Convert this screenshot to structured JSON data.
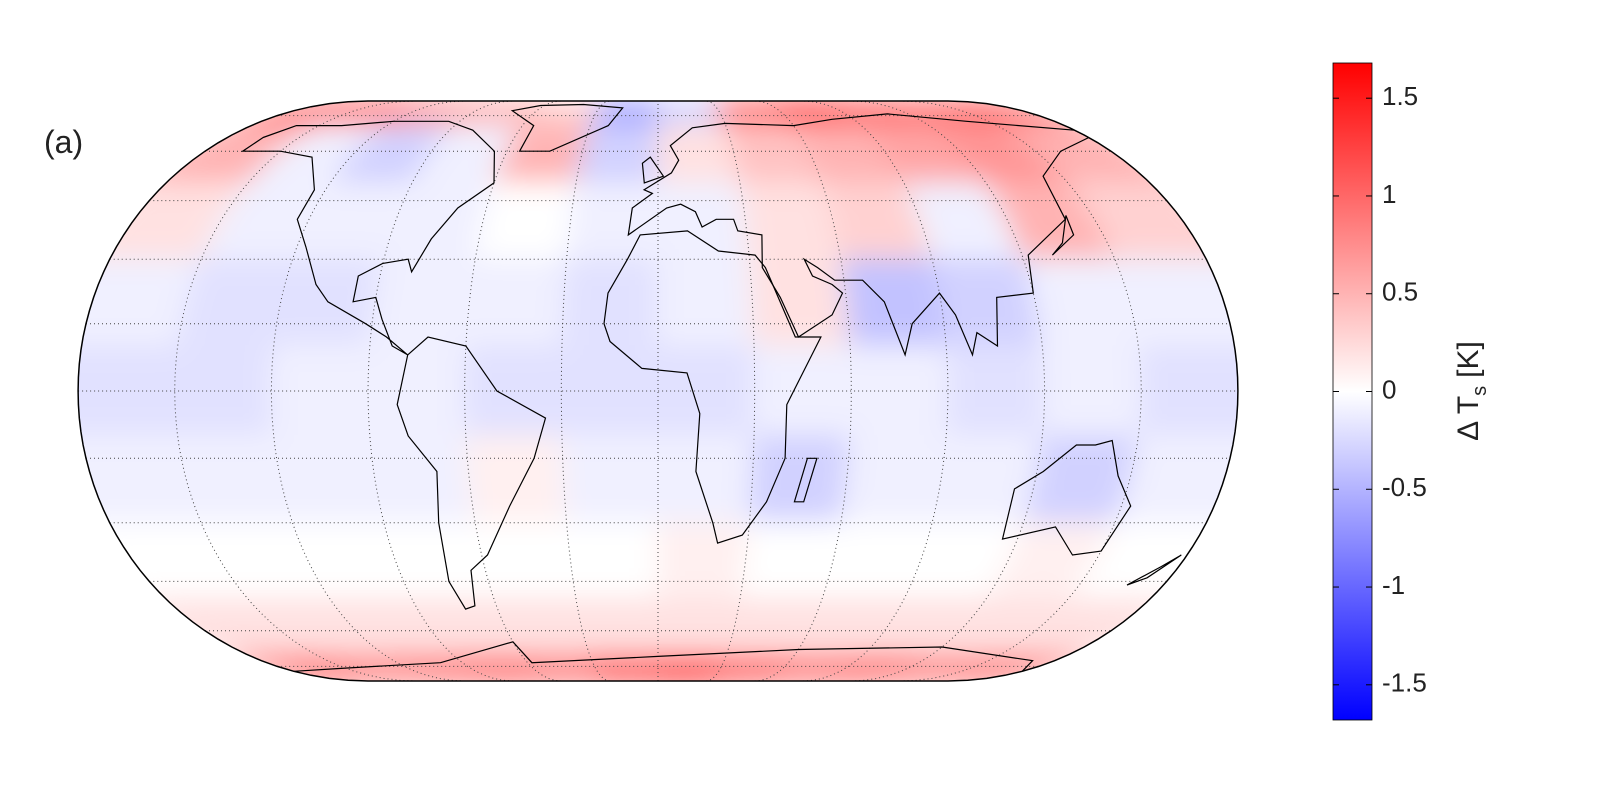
{
  "chart_data": {
    "type": "map",
    "panel_label": "(a)",
    "x": [
      -165,
      -135,
      -105,
      -75,
      -45,
      -15,
      15,
      45,
      75,
      105,
      135,
      165
    ],
    "y": [
      80,
      60,
      40,
      20,
      0,
      -20,
      -40,
      -60,
      -80
    ],
    "values": [
      [
        1.0,
        0.9,
        0.6,
        0.5,
        0.3,
        -0.6,
        -0.3,
        0.9,
        1.2,
        1.0,
        0.9,
        1.0
      ],
      [
        0.5,
        -0.1,
        -0.3,
        -0.1,
        0.5,
        -0.3,
        0.2,
        0.4,
        0.5,
        0.6,
        0.7,
        0.5
      ],
      [
        0.2,
        -0.1,
        -0.1,
        -0.1,
        0.0,
        -0.1,
        -0.1,
        0.2,
        0.3,
        -0.1,
        0.5,
        0.3
      ],
      [
        -0.1,
        -0.2,
        -0.2,
        -0.1,
        -0.1,
        -0.2,
        -0.1,
        0.2,
        -0.4,
        -0.3,
        -0.1,
        -0.1
      ],
      [
        -0.2,
        -0.2,
        -0.1,
        -0.1,
        -0.2,
        -0.2,
        -0.2,
        -0.1,
        -0.1,
        -0.2,
        -0.1,
        -0.2
      ],
      [
        -0.1,
        -0.1,
        -0.1,
        -0.1,
        0.1,
        -0.1,
        -0.1,
        -0.3,
        -0.1,
        -0.1,
        -0.3,
        -0.1
      ],
      [
        0.0,
        0.0,
        0.0,
        0.0,
        0.0,
        0.0,
        0.1,
        0.0,
        0.0,
        0.0,
        0.1,
        0.0
      ],
      [
        0.2,
        0.2,
        0.2,
        0.2,
        0.2,
        0.2,
        0.2,
        0.2,
        0.2,
        0.2,
        0.2,
        0.2
      ],
      [
        1.0,
        0.8,
        0.9,
        1.0,
        0.9,
        1.2,
        1.4,
        1.1,
        0.9,
        1.0,
        0.8,
        0.9
      ]
    ],
    "clim": [
      -1.68,
      1.68
    ],
    "cticks": [
      -1.5,
      -1,
      -0.5,
      0,
      0.5,
      1,
      1.5
    ],
    "colorbar_label": {
      "text": "Δ T",
      "subscript": "s",
      "suffix": "[K]"
    }
  }
}
